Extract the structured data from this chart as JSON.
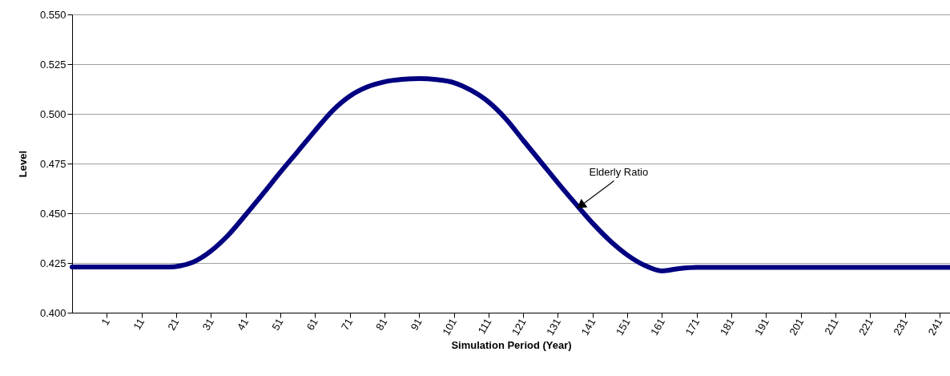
{
  "chart_data": {
    "type": "line",
    "xlabel": "Simulation Period (Year)",
    "ylabel": "Level",
    "x": [
      -9,
      19,
      22,
      26,
      31,
      36,
      41,
      46,
      51,
      56,
      61,
      66,
      71,
      76,
      81,
      86,
      91,
      96,
      101,
      106,
      111,
      116,
      121,
      126,
      131,
      136,
      141,
      146,
      151,
      156,
      161,
      166,
      171,
      244
    ],
    "series": [
      {
        "color": "#000080",
        "values": [
          0.423,
          0.423,
          0.4235,
          0.4255,
          0.431,
          0.439,
          0.4492,
          0.4598,
          0.4706,
          0.481,
          0.4915,
          0.5015,
          0.5089,
          0.5135,
          0.5161,
          0.5173,
          0.5177,
          0.5172,
          0.5157,
          0.5118,
          0.506,
          0.4975,
          0.4867,
          0.476,
          0.4653,
          0.455,
          0.445,
          0.4362,
          0.429,
          0.4238,
          0.421,
          0.4222,
          0.4228,
          0.4228
        ]
      }
    ],
    "xlim": [
      -9,
      244
    ],
    "xticks": [
      1,
      11,
      21,
      31,
      41,
      51,
      61,
      71,
      81,
      91,
      101,
      111,
      121,
      131,
      141,
      151,
      161,
      171,
      181,
      191,
      201,
      211,
      221,
      231,
      241
    ],
    "ylim": [
      0.4,
      0.55
    ],
    "yticks": [
      {
        "value": 0.4,
        "label": "0.400"
      },
      {
        "value": 0.425,
        "label": "0.425"
      },
      {
        "value": 0.45,
        "label": "0.450"
      },
      {
        "value": 0.475,
        "label": "0.475"
      },
      {
        "value": 0.5,
        "label": "0.500"
      },
      {
        "value": 0.525,
        "label": "0.525"
      },
      {
        "value": 0.55,
        "label": "0.550"
      }
    ],
    "grid": "y",
    "line_style": "solid",
    "annotations": [
      {
        "text": "Elderly Ratio",
        "x": 137,
        "y": 0.453
      }
    ]
  }
}
